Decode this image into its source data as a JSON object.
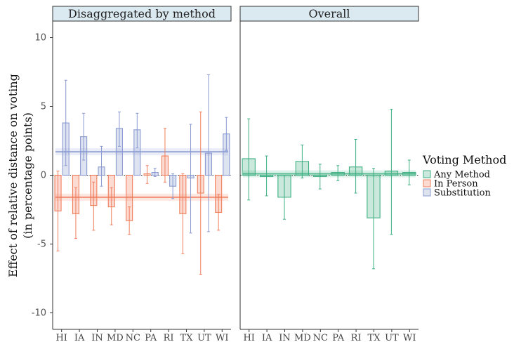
{
  "chart_data": {
    "type": "bar",
    "ylabel_line1": "Effect of relative distance on voting",
    "ylabel_line2": "(in percentage points)",
    "ylim": [
      -11.2,
      11.2
    ],
    "y_ticks": [
      10,
      5,
      0,
      -5,
      -10
    ],
    "y_tick_labels": [
      "10",
      "5",
      "0",
      "-5",
      "-10"
    ],
    "categories": [
      "HI",
      "IA",
      "IN",
      "MD",
      "NC",
      "PA",
      "RI",
      "TX",
      "UT",
      "WI"
    ],
    "legend_title": "Voting Method",
    "panels": [
      {
        "title": "Disaggregated by method",
        "series": [
          {
            "name": "In Person",
            "color": "#f07f5e",
            "values": [
              -2.6,
              -2.8,
              -2.2,
              -2.3,
              -3.3,
              0.1,
              1.4,
              -2.8,
              -1.3,
              -2.7
            ],
            "lower": [
              -5.5,
              -4.6,
              -4.0,
              -3.6,
              -4.3,
              -0.6,
              -0.5,
              -5.7,
              -7.2,
              -4.0
            ],
            "upper": [
              0.3,
              -0.9,
              -0.5,
              -0.9,
              -2.3,
              0.7,
              3.4,
              0.1,
              4.6,
              -1.4
            ],
            "overall": -1.6
          },
          {
            "name": "Substitution",
            "color": "#8a9ad0",
            "values": [
              3.8,
              2.8,
              0.6,
              3.4,
              3.3,
              0.2,
              -0.8,
              -0.2,
              1.6,
              3.0
            ],
            "lower": [
              0.7,
              1.1,
              -0.8,
              2.1,
              2.0,
              -0.1,
              -1.7,
              -4.2,
              -4.1,
              1.8
            ],
            "upper": [
              6.9,
              4.5,
              2.1,
              4.6,
              4.5,
              0.5,
              0.1,
              3.7,
              7.3,
              4.2
            ],
            "overall": 1.7
          }
        ]
      },
      {
        "title": "Overall",
        "series": [
          {
            "name": "Any Method",
            "color": "#3fb083",
            "values": [
              1.2,
              -0.1,
              -1.6,
              1.0,
              -0.1,
              0.2,
              0.6,
              -3.1,
              0.3,
              0.2
            ],
            "lower": [
              -1.8,
              -1.5,
              -3.2,
              -0.2,
              -1.0,
              -0.4,
              -1.3,
              -6.8,
              -4.3,
              -0.7
            ],
            "upper": [
              4.1,
              1.4,
              0.0,
              2.2,
              0.8,
              0.7,
              2.6,
              0.5,
              4.8,
              1.1
            ],
            "overall": 0.1
          }
        ]
      }
    ],
    "legend": [
      {
        "name": "Any Method",
        "color": "#3fb083"
      },
      {
        "name": "In Person",
        "color": "#f07f5e"
      },
      {
        "name": "Substitution",
        "color": "#8a9ad0"
      }
    ]
  }
}
